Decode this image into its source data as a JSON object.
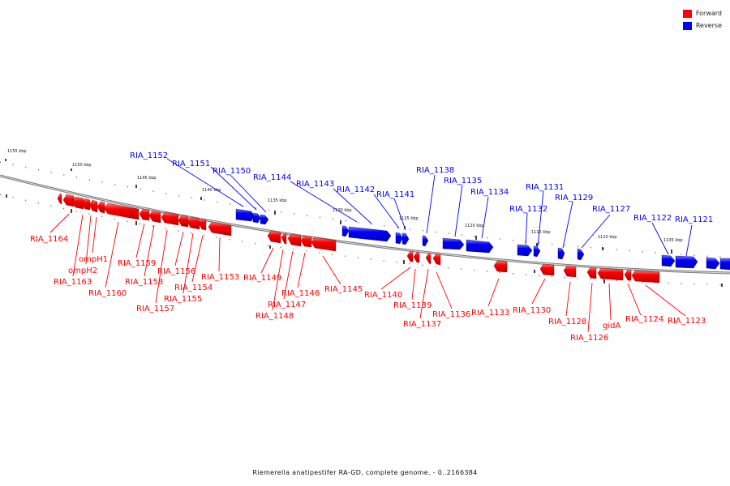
{
  "legend": {
    "forward_label": "Forward",
    "reverse_label": "Reverse",
    "forward_color": "#ff0000",
    "reverse_color": "#0000ff"
  },
  "caption": "Riemerella anatipestifer RA-GD, complete genome. - 0..2166384",
  "ticks": [
    "1155 kbp",
    "1150 kbp",
    "1145 kbp",
    "1140 kbp",
    "1135 kbp",
    "1130 kbp",
    "1125 kbp",
    "1120 kbp",
    "1115 kbp",
    "1110 kbp",
    "1105 kbp"
  ],
  "reverse_genes": [
    "RIA_1152",
    "RIA_1151",
    "RIA_1150",
    "RIA_1144",
    "RIA_1143",
    "RIA_1142",
    "RIA_1141",
    "RIA_1138",
    "RIA_1135",
    "RIA_1134",
    "RIA_1132",
    "RIA_1131",
    "RIA_1129",
    "RIA_1127",
    "RIA_1122",
    "RIA_1121"
  ],
  "forward_genes": [
    "RIA_1164",
    "ompH1",
    "ompH2",
    "RIA_1163",
    "RIA_1160",
    "RIA_1159",
    "RIA_1158",
    "RIA_1157",
    "RIA_1156",
    "RIA_1155",
    "RIA_1154",
    "RIA_1153",
    "RIA_1149",
    "RIA_1148",
    "RIA_1147",
    "RIA_1146",
    "RIA_1145",
    "RIA_1140",
    "RIA_1139",
    "RIA_1137",
    "RIA_1136",
    "RIA_1133",
    "RIA_1130",
    "RIA_1128",
    "RIA_1126",
    "gidA",
    "RIA_1124",
    "RIA_1123"
  ]
}
